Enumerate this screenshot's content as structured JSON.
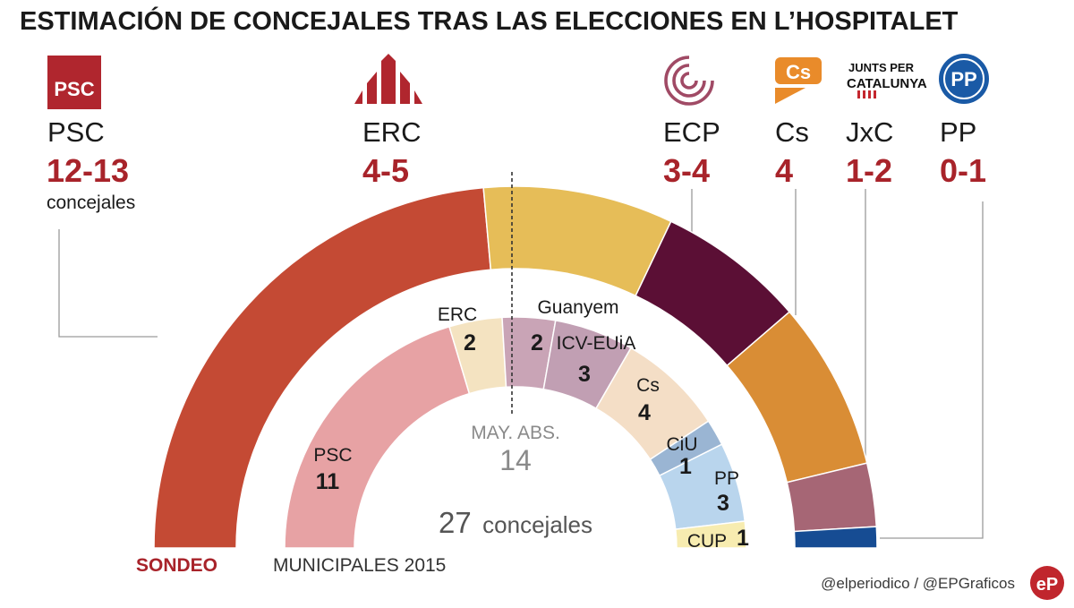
{
  "title": "ESTIMACIÓN DE CONCEJALES TRAS LAS ELECCIONES EN L’HOSPITALET",
  "colors": {
    "title": "#1a1a1a",
    "accent": "#a8232a",
    "leader": "#9a9a9a",
    "majority": "#333333",
    "subtle": "#8a8a8a",
    "footer": "#3a3a3a"
  },
  "parties": [
    {
      "name": "PSC",
      "range": "12-13",
      "note": "concejales",
      "logo": "psc-logo"
    },
    {
      "name": "ERC",
      "range": "4-5",
      "logo": "erc-logo"
    },
    {
      "name": "ECP",
      "range": "3-4",
      "logo": "ecp-logo"
    },
    {
      "name": "Cs",
      "range": "4",
      "logo": "cs-logo"
    },
    {
      "name": "JxC",
      "range": "1-2",
      "logo": "jxc-logo"
    },
    {
      "name": "PP",
      "range": "0-1",
      "logo": "pp-logo"
    }
  ],
  "logos": {
    "psc_text": "PSC",
    "cs_text": "Cs",
    "jxc_line1": "JUNTS PER",
    "jxc_line2": "CATALUNYA",
    "pp_text": "PP"
  },
  "majority": {
    "label": "MAY. ABS.",
    "value": "14"
  },
  "total": {
    "number": "27",
    "word": "concejales"
  },
  "sondeo_label": "SONDEO",
  "municipales_label": "MUNICIPALES 2015",
  "footer": {
    "credit": "@elperiodico / @EPGraficos",
    "logo_text": "eP"
  },
  "chart_data": [
    {
      "type": "pie",
      "variant": "hemicycle",
      "title": "SONDEO",
      "total_seats": 27,
      "majority": 14,
      "series": [
        {
          "name": "PSC",
          "range": "12-13",
          "min": 12,
          "max": 13,
          "color": "#c44a34"
        },
        {
          "name": "ERC",
          "range": "4-5",
          "min": 4,
          "max": 5,
          "color": "#e6bd58"
        },
        {
          "name": "ECP",
          "range": "3-4",
          "min": 3,
          "max": 4,
          "color": "#5b0f35"
        },
        {
          "name": "Cs",
          "range": "4",
          "min": 4,
          "max": 4,
          "color": "#d98d35"
        },
        {
          "name": "JxC",
          "range": "1-2",
          "min": 1,
          "max": 2,
          "color": "#a66675"
        },
        {
          "name": "PP",
          "range": "0-1",
          "min": 0,
          "max": 1,
          "color": "#164c93"
        }
      ]
    },
    {
      "type": "pie",
      "variant": "hemicycle",
      "title": "MUNICIPALES 2015",
      "total_seats": 27,
      "majority": 14,
      "series": [
        {
          "name": "PSC",
          "seats": 11,
          "color": "#e7a2a4"
        },
        {
          "name": "ERC",
          "seats": 2,
          "color": "#f4e3c1"
        },
        {
          "name": "Guanyem",
          "seats": 2,
          "color": "#c9a4b6"
        },
        {
          "name": "ICV-EUiA",
          "seats": 3,
          "color": "#c19fb3"
        },
        {
          "name": "Cs",
          "seats": 4,
          "color": "#f4dec6"
        },
        {
          "name": "CiU",
          "seats": 1,
          "color": "#9ab5d3"
        },
        {
          "name": "PP",
          "seats": 3,
          "color": "#b9d5ed"
        },
        {
          "name": "CUP",
          "seats": 1,
          "color": "#f7ecb0"
        }
      ]
    }
  ]
}
